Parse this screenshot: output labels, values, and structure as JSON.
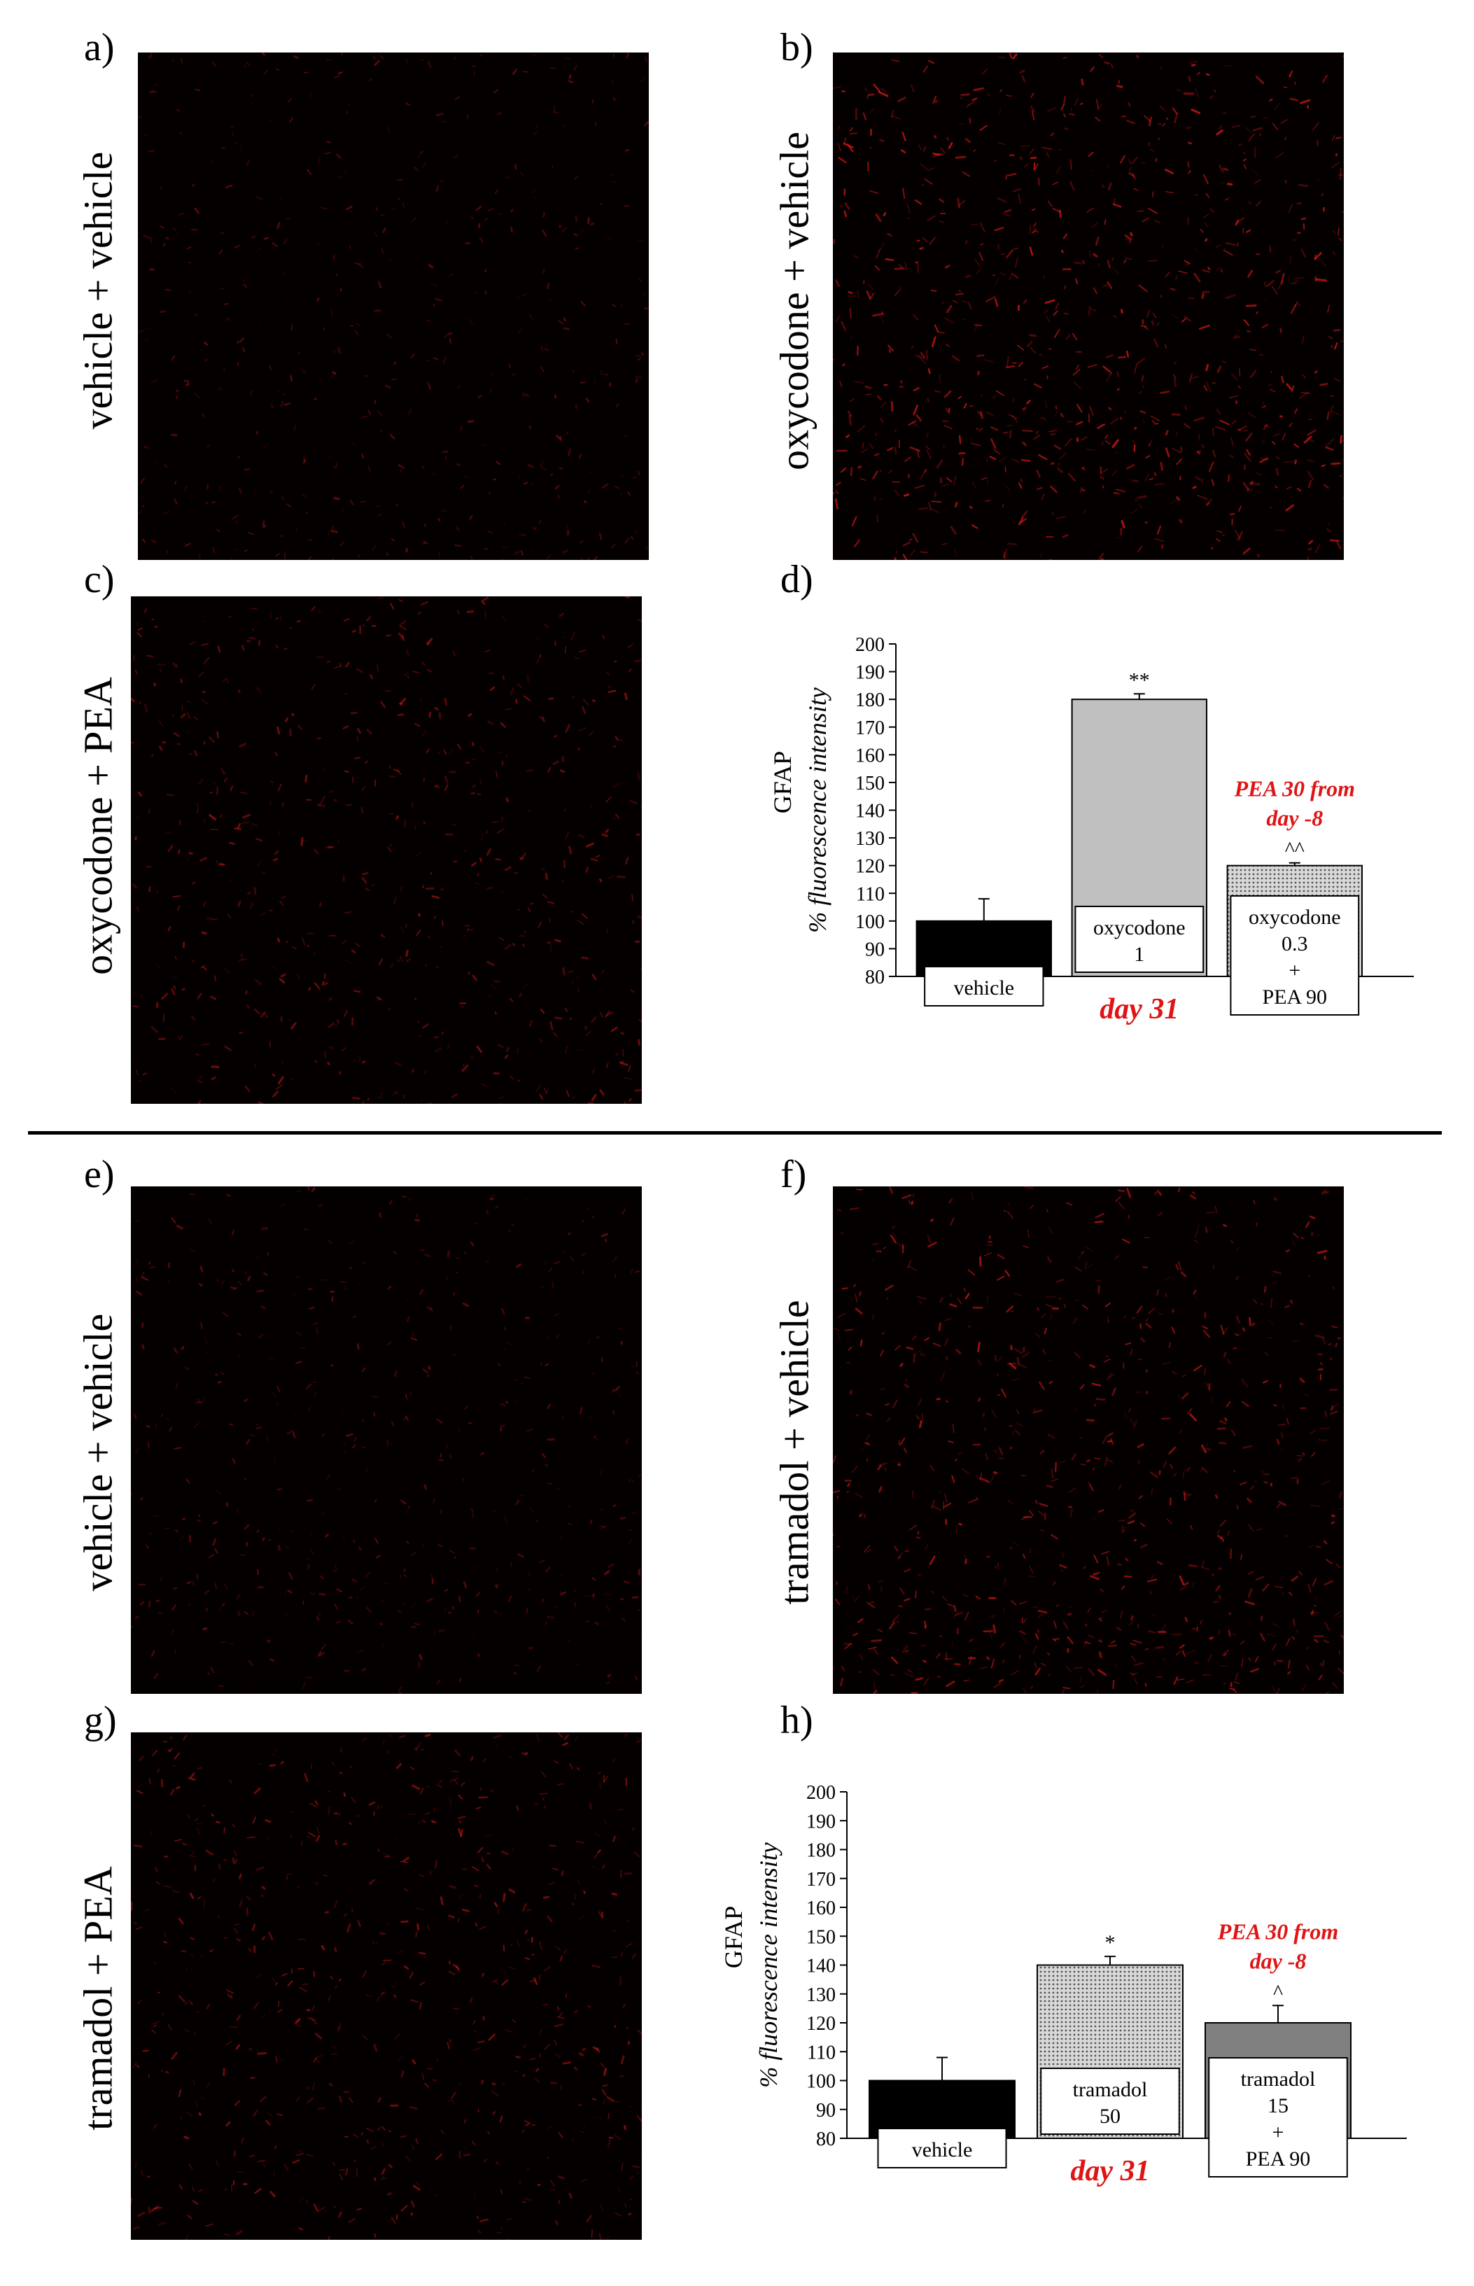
{
  "panels": [
    {
      "letter": "a)",
      "label": "vehicle + vehicle",
      "intensity": 0.55,
      "seed": 11
    },
    {
      "letter": "b)",
      "label": "oxycodone + vehicle",
      "intensity": 1.0,
      "seed": 23
    },
    {
      "letter": "c)",
      "label": "oxycodone + PEA",
      "intensity": 0.7,
      "seed": 37
    },
    {
      "letter": "e)",
      "label": "vehicle + vehicle",
      "intensity": 0.55,
      "seed": 41
    },
    {
      "letter": "f)",
      "label": "tramadol + vehicle",
      "intensity": 0.9,
      "seed": 53
    },
    {
      "letter": "g)",
      "label": "tramadol + PEA",
      "intensity": 0.75,
      "seed": 67
    }
  ],
  "colors": {
    "fluorescence": "#e01818",
    "black_bar": "#000000",
    "light_gray_bar": "#c0c0c0",
    "dark_gray_bar": "#808080",
    "annotation_red": "#e01414"
  },
  "chart_data": [
    {
      "letter": "d)",
      "type": "bar",
      "ylabel_top": "GFAP",
      "ylabel_bottom": "% fluorescence intensity",
      "ylim": [
        80,
        200
      ],
      "yticks": [
        80,
        90,
        100,
        110,
        120,
        130,
        140,
        150,
        160,
        170,
        180,
        190,
        200
      ],
      "categories": [
        "vehicle",
        "oxycodone\n1",
        "oxycodone\n0.3\n+\nPEA 90"
      ],
      "values": [
        100,
        180,
        120
      ],
      "errors": [
        8,
        2,
        1
      ],
      "significance": [
        "",
        "**",
        "^^"
      ],
      "fills": [
        "black",
        "lightgray",
        "dotted"
      ],
      "xlabel": "day 31",
      "annotation": "PEA 30 from\nday -8"
    },
    {
      "letter": "h)",
      "type": "bar",
      "ylabel_top": "GFAP",
      "ylabel_bottom": "% fluorescence intensity",
      "ylim": [
        80,
        200
      ],
      "yticks": [
        80,
        90,
        100,
        110,
        120,
        130,
        140,
        150,
        160,
        170,
        180,
        190,
        200
      ],
      "categories": [
        "vehicle",
        "tramadol\n50",
        "tramadol\n15\n+\nPEA 90"
      ],
      "values": [
        100,
        140,
        120
      ],
      "errors": [
        8,
        3,
        6
      ],
      "significance": [
        "",
        "*",
        "^"
      ],
      "fills": [
        "black",
        "dotted",
        "darkgray"
      ],
      "xlabel": "day 31",
      "annotation": "PEA 30 from\nday -8"
    }
  ]
}
